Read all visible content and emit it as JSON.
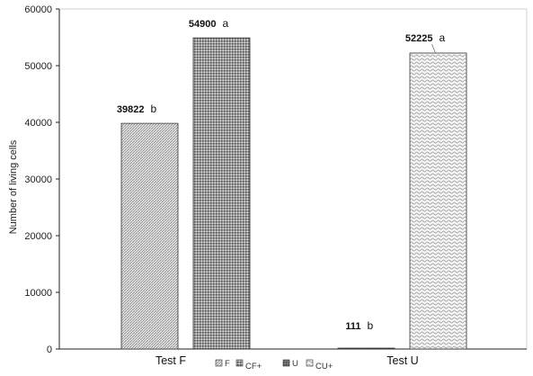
{
  "chart_data": {
    "type": "bar",
    "title": "",
    "ylabel": "Number of living cells",
    "xlabel": "",
    "ylim": [
      0,
      60000
    ],
    "yticks": [
      0,
      10000,
      20000,
      30000,
      40000,
      50000,
      60000
    ],
    "grid": false,
    "groups": [
      "Test F",
      "Test U"
    ],
    "series": [
      {
        "name": "F",
        "group": "Test F",
        "value": 39822,
        "label": "39822",
        "significance": "b",
        "pattern": "diag-fine"
      },
      {
        "name": "CF+",
        "group": "Test F",
        "value": 54900,
        "label": "54900",
        "significance": "a",
        "pattern": "dots-dense"
      },
      {
        "name": "U",
        "group": "Test U",
        "value": 111,
        "label": "111",
        "significance": "b",
        "pattern": "grid-dark"
      },
      {
        "name": "CU+",
        "group": "Test U",
        "value": 52225,
        "label": "52225",
        "significance": "a",
        "pattern": "wave"
      }
    ],
    "legend": {
      "position": "bottom",
      "entries": [
        "F",
        "CF+",
        "U",
        "CU+"
      ]
    }
  }
}
